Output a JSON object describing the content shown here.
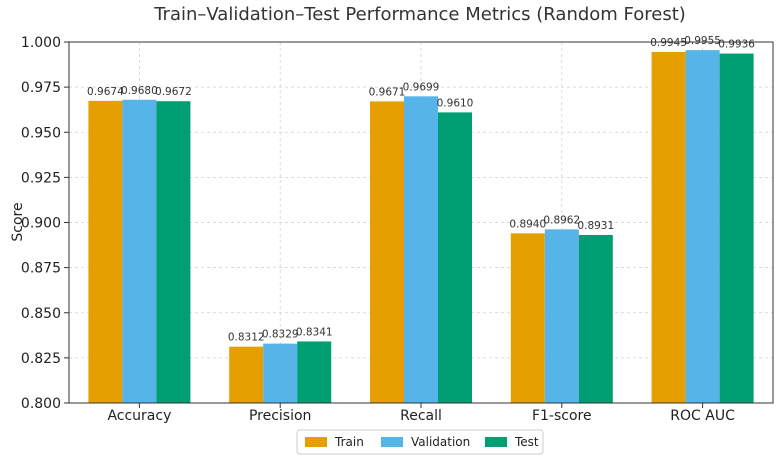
{
  "chart_data": {
    "type": "bar",
    "title": "Train–Validation–Test Performance Metrics (Random Forest)",
    "xlabel": "",
    "ylabel": "Score",
    "ylim": [
      0.8,
      1.0
    ],
    "yticks": [
      "0.800",
      "0.825",
      "0.850",
      "0.875",
      "0.900",
      "0.925",
      "0.950",
      "0.975",
      "1.000"
    ],
    "ytick_values": [
      0.8,
      0.825,
      0.85,
      0.875,
      0.9,
      0.925,
      0.95,
      0.975,
      1.0
    ],
    "grid": true,
    "legend_position": "bottom-center",
    "categories": [
      "Accuracy",
      "Precision",
      "Recall",
      "F1-score",
      "ROC AUC"
    ],
    "series": [
      {
        "name": "Train",
        "color": "#E69F00",
        "values": [
          0.9674,
          0.8312,
          0.9671,
          0.894,
          0.9945
        ],
        "labels": [
          "0.9674",
          "0.8312",
          "0.9671",
          "0.8940",
          "0.9945"
        ]
      },
      {
        "name": "Validation",
        "color": "#56B4E9",
        "values": [
          0.968,
          0.8329,
          0.9699,
          0.8962,
          0.9955
        ],
        "labels": [
          "0.9680",
          "0.8329",
          "0.9699",
          "0.8962",
          "0.9955"
        ]
      },
      {
        "name": "Test",
        "color": "#009E73",
        "values": [
          0.9672,
          0.8341,
          0.961,
          0.8931,
          0.9936
        ],
        "labels": [
          "0.9672",
          "0.8341",
          "0.9610",
          "0.8931",
          "0.9936"
        ]
      }
    ]
  }
}
